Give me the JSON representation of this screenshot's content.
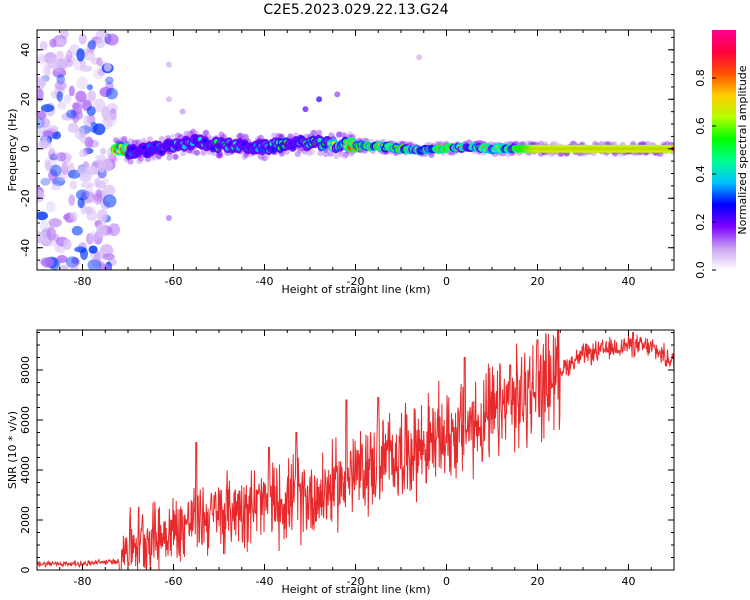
{
  "title": "C2E5.2023.029.22.13.G24",
  "chart_data": [
    {
      "type": "heatmap",
      "xlabel": "Height of straight line (km)",
      "ylabel": "Frequency (Hz)",
      "xlim": [
        -90,
        50
      ],
      "ylim": [
        -49,
        48
      ],
      "xticks": [
        -80,
        -60,
        -40,
        -20,
        0,
        20,
        40
      ],
      "yticks": [
        -40,
        -20,
        0,
        20,
        40
      ],
      "grid": false,
      "colorbar": {
        "label": "Normalized spectral amplitude",
        "range": [
          0,
          1
        ],
        "ticks": [
          "0.0",
          "0.2",
          "0.4",
          "0.6",
          "0.8"
        ],
        "colormap": [
          "#ffffff",
          "#c9a2f2",
          "#7d00ff",
          "#0000ff",
          "#00c0ff",
          "#00ff90",
          "#00ff00",
          "#b4ff00",
          "#ffcc00",
          "#ff5000",
          "#ff0040",
          "#ff0090"
        ]
      },
      "description_values": {
        "noise_region_x": [
          -90,
          -73
        ],
        "signal_start_x": -73,
        "signal_frequency_hz": 0,
        "ridge_points": [
          {
            "x": -70,
            "y": -1.5,
            "amp": 0.35
          },
          {
            "x": -60,
            "y": 1.0,
            "amp": 0.45
          },
          {
            "x": -55,
            "y": 3.0,
            "amp": 0.5
          },
          {
            "x": -50,
            "y": 1.5,
            "amp": 0.55
          },
          {
            "x": -45,
            "y": 1.0,
            "amp": 0.55
          },
          {
            "x": -40,
            "y": 0.5,
            "amp": 0.55
          },
          {
            "x": -35,
            "y": 2.0,
            "amp": 0.6
          },
          {
            "x": -30,
            "y": 2.5,
            "amp": 0.6
          },
          {
            "x": -25,
            "y": 1.5,
            "amp": 0.7
          },
          {
            "x": -20,
            "y": 1.5,
            "amp": 0.95
          },
          {
            "x": -15,
            "y": 1.0,
            "amp": 0.85
          },
          {
            "x": -10,
            "y": 0.0,
            "amp": 0.9
          },
          {
            "x": -5,
            "y": -0.5,
            "amp": 0.8
          },
          {
            "x": 0,
            "y": 0.0,
            "amp": 0.9
          },
          {
            "x": 5,
            "y": 0.5,
            "amp": 0.75
          },
          {
            "x": 10,
            "y": 0.0,
            "amp": 0.8
          },
          {
            "x": 15,
            "y": 0.0,
            "amp": 0.8
          },
          {
            "x": 20,
            "y": 0.0,
            "amp": 0.95
          },
          {
            "x": 30,
            "y": 0.0,
            "amp": 0.95
          },
          {
            "x": 40,
            "y": 0.0,
            "amp": 0.95
          },
          {
            "x": 50,
            "y": 0.0,
            "amp": 0.95
          }
        ],
        "outlier_points": [
          {
            "x": -58,
            "y": 15,
            "amp": 0.1
          },
          {
            "x": -31,
            "y": 16,
            "amp": 0.2
          },
          {
            "x": -28,
            "y": 20,
            "amp": 0.25
          },
          {
            "x": -24,
            "y": 22,
            "amp": 0.15
          },
          {
            "x": -61,
            "y": 34,
            "amp": 0.08
          },
          {
            "x": -61,
            "y": 20,
            "amp": 0.08
          },
          {
            "x": -61,
            "y": -28,
            "amp": 0.12
          },
          {
            "x": -6,
            "y": 37,
            "amp": 0.08
          }
        ]
      }
    },
    {
      "type": "line",
      "xlabel": "Height of straight line (km)",
      "ylabel": "SNR (10 * v/v)",
      "xlim": [
        -90,
        50
      ],
      "ylim": [
        0,
        9600
      ],
      "xticks": [
        -80,
        -60,
        -40,
        -20,
        0,
        20,
        40
      ],
      "yticks": [
        0,
        2000,
        4000,
        6000,
        8000
      ],
      "grid": false,
      "color": "#e8292b",
      "series_trend": {
        "x": [
          -90,
          -80,
          -72,
          -70,
          -65,
          -60,
          -55,
          -50,
          -45,
          -40,
          -35,
          -30,
          -25,
          -20,
          -15,
          -10,
          -5,
          0,
          5,
          10,
          15,
          20,
          25,
          30,
          35,
          40,
          45,
          50
        ],
        "y": [
          250,
          250,
          350,
          1100,
          1300,
          1550,
          2100,
          2200,
          2600,
          2600,
          2800,
          2900,
          3300,
          3800,
          4300,
          4700,
          5000,
          5400,
          5700,
          6100,
          6700,
          7300,
          8000,
          8600,
          8800,
          9000,
          8900,
          8300
        ]
      },
      "peaks": [
        {
          "x": -55,
          "y": 5100
        },
        {
          "x": -39,
          "y": 4900
        },
        {
          "x": -33,
          "y": 5500
        },
        {
          "x": -22,
          "y": 6800
        },
        {
          "x": -15,
          "y": 6900
        },
        {
          "x": 4,
          "y": 8500
        },
        {
          "x": 14,
          "y": 8200
        },
        {
          "x": 20,
          "y": 9200
        },
        {
          "x": 41,
          "y": 9500
        }
      ]
    }
  ]
}
